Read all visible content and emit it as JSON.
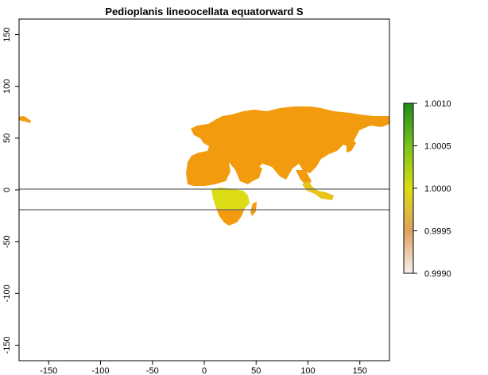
{
  "title": "Pedioplanis lineoocellata equatorward S",
  "y_axis": {
    "ticks": [
      {
        "value": 150,
        "label": "150"
      },
      {
        "value": 100,
        "label": "100"
      },
      {
        "value": 50,
        "label": "50"
      },
      {
        "value": 0,
        "label": "0"
      },
      {
        "value": -50,
        "label": "-50"
      },
      {
        "value": -100,
        "label": "-100"
      },
      {
        "value": -150,
        "label": "-150"
      }
    ],
    "range": [
      -165,
      165
    ]
  },
  "x_axis": {
    "ticks": [
      {
        "value": -150,
        "label": "-150"
      },
      {
        "value": -100,
        "label": "-100"
      },
      {
        "value": -50,
        "label": "-50"
      },
      {
        "value": 0,
        "label": "0"
      },
      {
        "value": 50,
        "label": "50"
      },
      {
        "value": 100,
        "label": "100"
      },
      {
        "value": 150,
        "label": "150"
      }
    ],
    "range": [
      -180,
      180
    ]
  },
  "reference_lines_lat": [
    0,
    -20
  ],
  "colors": {
    "land_main": "#F39B0F",
    "africa_south": "#DCDC14",
    "indonesia": "#E8C41A",
    "reference_line": "#666666"
  },
  "legend": {
    "labels": [
      {
        "value": 1.001,
        "label": "1.0010"
      },
      {
        "value": 1.0005,
        "label": "1.0005"
      },
      {
        "value": 1.0,
        "label": "1.0000"
      },
      {
        "value": 0.9995,
        "label": "0.9995"
      },
      {
        "value": 0.999,
        "label": "0.9990"
      }
    ],
    "range": [
      0.999,
      1.001
    ],
    "gradient": [
      {
        "stop": 0.0,
        "color": "#1E8C1A"
      },
      {
        "stop": 0.25,
        "color": "#7AC21E"
      },
      {
        "stop": 0.5,
        "color": "#DCDC14"
      },
      {
        "stop": 0.75,
        "color": "#E0A060"
      },
      {
        "stop": 1.0,
        "color": "#F5F0F0"
      }
    ]
  }
}
